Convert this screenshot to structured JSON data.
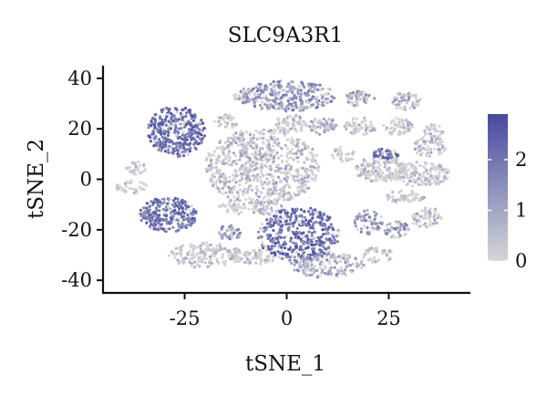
{
  "chart_data": {
    "type": "scatter",
    "title": "SLC9A3R1",
    "xlabel": "tSNE_1",
    "ylabel": "tSNE_2",
    "xlim": [
      -45,
      45
    ],
    "ylim": [
      -45,
      45
    ],
    "x_ticks": [
      -25,
      0,
      25
    ],
    "y_ticks": [
      -40,
      -20,
      0,
      20,
      40
    ],
    "grid": false,
    "legend": {
      "type": "colorbar",
      "position": "right",
      "min": 0,
      "max": 2.9,
      "ticks": [
        0,
        1,
        2
      ],
      "low_color": "#d6d6d6",
      "high_color": "#464aa0"
    },
    "clusters": [
      {
        "cx": -27,
        "cy": 19,
        "rx": 7,
        "ry": 10,
        "expr": 2.1,
        "n": 340
      },
      {
        "cx": -10,
        "cy": 33,
        "rx": 3,
        "ry": 2.5,
        "expr": 0.2,
        "n": 30
      },
      {
        "cx": -15,
        "cy": 23,
        "rx": 3,
        "ry": 3,
        "expr": 0.4,
        "n": 35
      },
      {
        "cx": 0,
        "cy": 33,
        "rx": 12,
        "ry": 6,
        "expr": 1.4,
        "n": 300
      },
      {
        "cx": 18,
        "cy": 32,
        "rx": 3.5,
        "ry": 3,
        "expr": 1.1,
        "n": 60
      },
      {
        "cx": 29,
        "cy": 31,
        "rx": 4,
        "ry": 3.5,
        "expr": 0.9,
        "n": 60
      },
      {
        "cx": 1,
        "cy": 22,
        "rx": 4,
        "ry": 3.5,
        "expr": 0.5,
        "n": 60
      },
      {
        "cx": 9,
        "cy": 21,
        "rx": 3.5,
        "ry": 3.5,
        "expr": 0.8,
        "n": 55
      },
      {
        "cx": 18,
        "cy": 21,
        "rx": 4,
        "ry": 3.5,
        "expr": 0.3,
        "n": 55
      },
      {
        "cx": 27,
        "cy": 21,
        "rx": 4,
        "ry": 3.5,
        "expr": 0.5,
        "n": 55
      },
      {
        "cx": 36,
        "cy": 19,
        "rx": 2.5,
        "ry": 3,
        "expr": 0.2,
        "n": 30
      },
      {
        "cx": 35,
        "cy": 13,
        "rx": 4,
        "ry": 4,
        "expr": 0.8,
        "n": 60
      },
      {
        "cx": -6,
        "cy": 5,
        "rx": 14,
        "ry": 15,
        "expr": 0.55,
        "n": 700
      },
      {
        "cx": 23,
        "cy": 4,
        "rx": 6.5,
        "ry": 5,
        "expr": 0.4,
        "n": 160
      },
      {
        "cx": 33,
        "cy": 2,
        "rx": 7,
        "ry": 5,
        "expr": 0.3,
        "n": 160
      },
      {
        "cx": 24,
        "cy": 10,
        "rx": 3.5,
        "ry": 2,
        "expr": 2.0,
        "n": 40
      },
      {
        "cx": 14,
        "cy": 10,
        "rx": 3,
        "ry": 3,
        "expr": 0.3,
        "n": 30
      },
      {
        "cx": -37,
        "cy": 4,
        "rx": 2.5,
        "ry": 3,
        "expr": 0.2,
        "n": 30
      },
      {
        "cx": -38,
        "cy": -3,
        "rx": 4,
        "ry": 2.5,
        "expr": 0.2,
        "n": 35
      },
      {
        "cx": -29,
        "cy": -14,
        "rx": 7,
        "ry": 7,
        "expr": 2.0,
        "n": 260
      },
      {
        "cx": -13,
        "cy": -11,
        "rx": 3.5,
        "ry": 3,
        "expr": 0.3,
        "n": 40
      },
      {
        "cx": -5,
        "cy": -11,
        "rx": 4.5,
        "ry": 3,
        "expr": 0.4,
        "n": 50
      },
      {
        "cx": 3,
        "cy": -22,
        "rx": 10,
        "ry": 11,
        "expr": 2.1,
        "n": 420
      },
      {
        "cx": -14,
        "cy": -21,
        "rx": 3,
        "ry": 3,
        "expr": 1.3,
        "n": 40
      },
      {
        "cx": 20,
        "cy": -17,
        "rx": 3.5,
        "ry": 5,
        "expr": 1.4,
        "n": 60
      },
      {
        "cx": 27,
        "cy": -20,
        "rx": 3,
        "ry": 3.5,
        "expr": 1.2,
        "n": 45
      },
      {
        "cx": 34,
        "cy": -15,
        "rx": 4,
        "ry": 4,
        "expr": 0.5,
        "n": 60
      },
      {
        "cx": 29,
        "cy": -7,
        "rx": 5,
        "ry": 2.5,
        "expr": 0.3,
        "n": 50
      },
      {
        "cx": -20,
        "cy": -30,
        "rx": 9,
        "ry": 5,
        "expr": 0.4,
        "n": 160
      },
      {
        "cx": -8,
        "cy": -31,
        "rx": 5,
        "ry": 3,
        "expr": 0.3,
        "n": 60
      },
      {
        "cx": 10,
        "cy": -34,
        "rx": 9,
        "ry": 5,
        "expr": 1.0,
        "n": 170
      },
      {
        "cx": 22,
        "cy": -30,
        "rx": 4,
        "ry": 3,
        "expr": 0.3,
        "n": 40
      }
    ]
  }
}
